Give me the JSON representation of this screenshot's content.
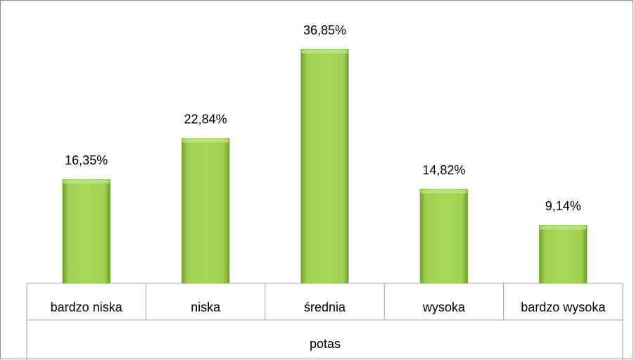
{
  "chart_data": {
    "type": "bar",
    "categories": [
      "bardzo niska",
      "niska",
      "średnia",
      "wysoka",
      "bardzo wysoka"
    ],
    "values": [
      16.35,
      22.84,
      36.85,
      14.82,
      9.14
    ],
    "value_labels": [
      "16,35%",
      "22,84%",
      "36,85%",
      "14,82%",
      "9,14%"
    ],
    "x_label": "potas",
    "color": "#92d050"
  }
}
